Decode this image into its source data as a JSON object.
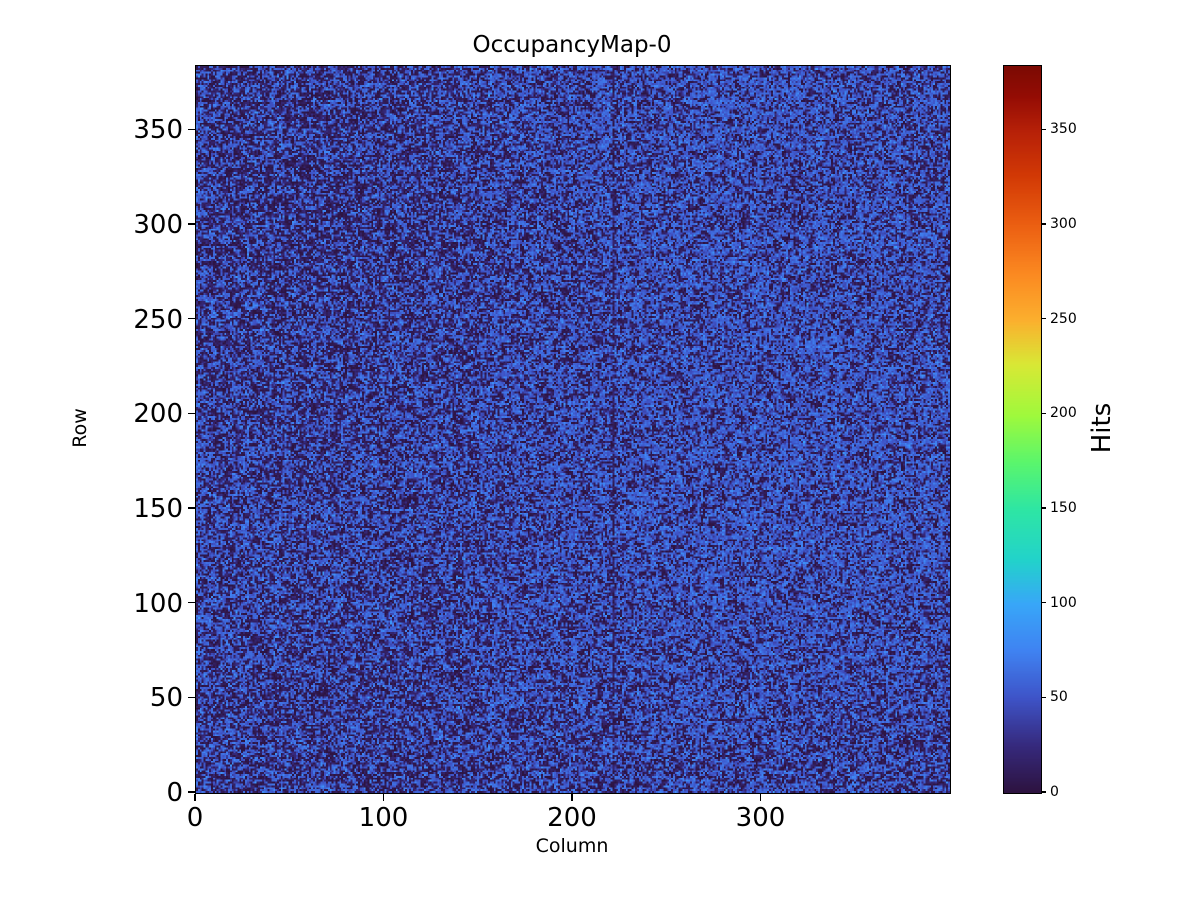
{
  "chart_data": {
    "type": "heatmap",
    "title": "OccupancyMap-0",
    "xlabel": "Column",
    "ylabel": "Row",
    "colorbar_label": "Hits",
    "colormap": "turbo",
    "xlim": [
      0,
      400
    ],
    "ylim": [
      0,
      384
    ],
    "vmin": 0,
    "vmax": 384,
    "x_ticks": [
      0,
      100,
      200,
      300
    ],
    "y_ticks": [
      0,
      50,
      100,
      150,
      200,
      250,
      300,
      350
    ],
    "colorbar_ticks": [
      0,
      50,
      100,
      150,
      200,
      250,
      300,
      350
    ],
    "grid": {
      "n_cols": 400,
      "n_rows": 384,
      "grid_lines": false
    },
    "legend": "colorbar-right",
    "colormap_stops": [
      {
        "t": 0.0,
        "color": "#2d1340"
      },
      {
        "t": 0.065,
        "color": "#362a7e"
      },
      {
        "t": 0.13,
        "color": "#3e54c8"
      },
      {
        "t": 0.195,
        "color": "#3f83f2"
      },
      {
        "t": 0.26,
        "color": "#38a7f8"
      },
      {
        "t": 0.32,
        "color": "#22d3cb"
      },
      {
        "t": 0.39,
        "color": "#2ee6a4"
      },
      {
        "t": 0.455,
        "color": "#5bf66c"
      },
      {
        "t": 0.52,
        "color": "#a0f93c"
      },
      {
        "t": 0.59,
        "color": "#d9e835"
      },
      {
        "t": 0.65,
        "color": "#fbb02e"
      },
      {
        "t": 0.715,
        "color": "#fb8921"
      },
      {
        "t": 0.78,
        "color": "#ec6012"
      },
      {
        "t": 0.85,
        "color": "#d23905"
      },
      {
        "t": 0.91,
        "color": "#b72108"
      },
      {
        "t": 0.96,
        "color": "#940c04"
      },
      {
        "t": 1.0,
        "color": "#7c0a03"
      }
    ],
    "value_model": {
      "description": "bimodal pixel occupancy: majority of pixels ~55 hits (royal blue), ~37% near-zero hits (dark purple speckle), spatially clumped noise",
      "seed": 1337,
      "low_fraction": 0.36,
      "low_max": 26,
      "high_mean": 57,
      "high_sigma": 11
    },
    "anomalies": {
      "dead_column": {
        "col": 221,
        "low_probability": 0.87
      },
      "dead_cluster": {
        "col": 395,
        "row": 181,
        "radius": 2.7,
        "low_probability": 0.85
      }
    }
  }
}
